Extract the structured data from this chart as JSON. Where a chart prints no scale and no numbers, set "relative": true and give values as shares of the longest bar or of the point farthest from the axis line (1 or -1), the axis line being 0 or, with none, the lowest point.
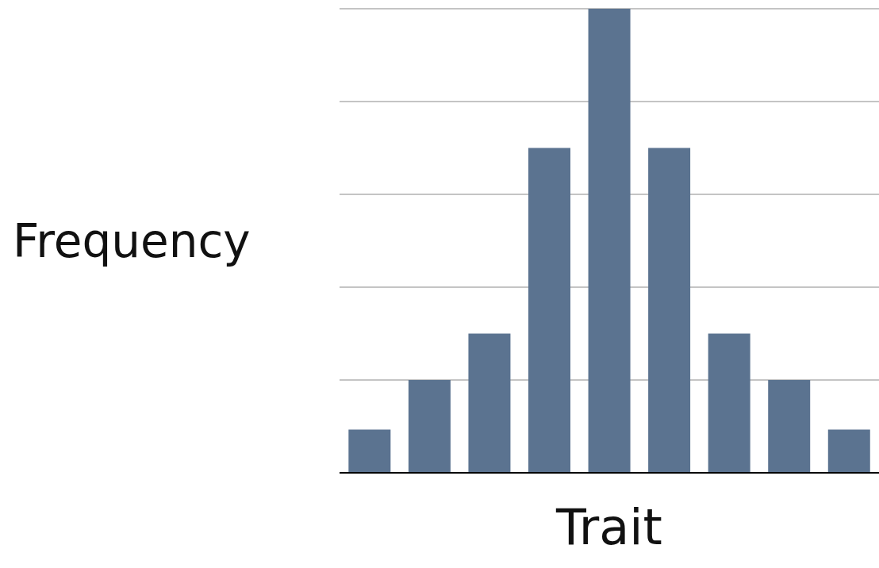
{
  "chart_data": {
    "type": "bar",
    "xlabel": "Trait",
    "ylabel": "Frequency",
    "relative": true,
    "grid": "y",
    "categories": [
      null,
      null,
      null,
      null,
      null,
      null,
      null,
      null,
      null
    ],
    "color": "#5b7390",
    "values": [
      0.093,
      0.2,
      0.3,
      0.7,
      1,
      0.7,
      0.3,
      0.2,
      0.093
    ]
  }
}
